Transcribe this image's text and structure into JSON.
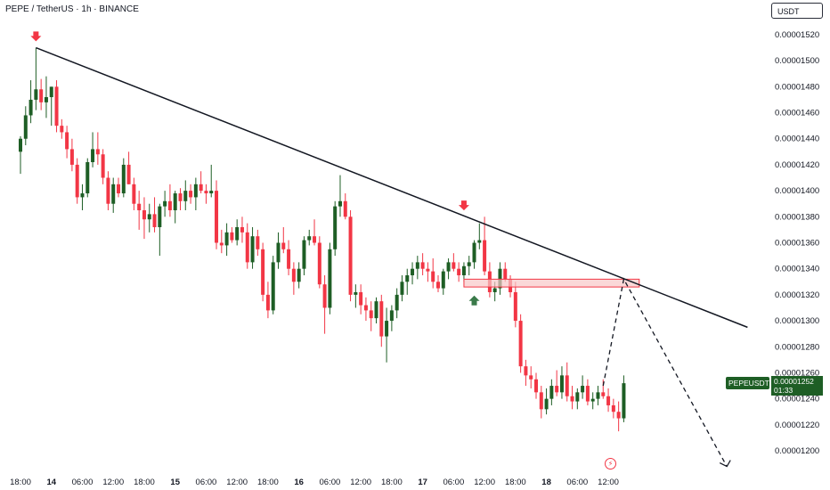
{
  "header": {
    "title": "PEPE / TetherUS · 1h · BINANCE"
  },
  "currency_badge": "USDT",
  "price_tag": {
    "symbol": "PEPEUSDT",
    "price": "0.00001252",
    "countdown": "01:33"
  },
  "icons": {
    "lightning": "lightning-icon"
  },
  "colors": {
    "up": "#1e5e25",
    "down": "#f23645",
    "trendline": "#131722",
    "zone_fill": "#f8c8c8",
    "zone_border": "#f23645",
    "projection": "#131722"
  },
  "chart_data": {
    "type": "candlestick",
    "ylim": [
      1.187e-05,
      1.533e-05
    ],
    "y_ticks": [
      "0.00001200",
      "0.00001220",
      "0.00001240",
      "0.00001260",
      "0.00001280",
      "0.00001300",
      "0.00001320",
      "0.00001340",
      "0.00001360",
      "0.00001380",
      "0.00001400",
      "0.00001420",
      "0.00001440",
      "0.00001460",
      "0.00001480",
      "0.00001500",
      "0.00001520"
    ],
    "x_ticks": [
      {
        "label": "18:00",
        "bold": false,
        "index": 0
      },
      {
        "label": "14",
        "bold": true,
        "index": 6
      },
      {
        "label": "06:00",
        "bold": false,
        "index": 12
      },
      {
        "label": "12:00",
        "bold": false,
        "index": 18
      },
      {
        "label": "18:00",
        "bold": false,
        "index": 24
      },
      {
        "label": "15",
        "bold": true,
        "index": 30
      },
      {
        "label": "06:00",
        "bold": false,
        "index": 36
      },
      {
        "label": "12:00",
        "bold": false,
        "index": 42
      },
      {
        "label": "18:00",
        "bold": false,
        "index": 48
      },
      {
        "label": "16",
        "bold": true,
        "index": 54
      },
      {
        "label": "06:00",
        "bold": false,
        "index": 60
      },
      {
        "label": "12:00",
        "bold": false,
        "index": 66
      },
      {
        "label": "18:00",
        "bold": false,
        "index": 72
      },
      {
        "label": "17",
        "bold": true,
        "index": 78
      },
      {
        "label": "06:00",
        "bold": false,
        "index": 84
      },
      {
        "label": "12:00",
        "bold": false,
        "index": 90
      },
      {
        "label": "18:00",
        "bold": false,
        "index": 96
      },
      {
        "label": "18",
        "bold": true,
        "index": 102
      },
      {
        "label": "06:00",
        "bold": false,
        "index": 108
      },
      {
        "label": "12:00",
        "bold": false,
        "index": 114
      }
    ],
    "candles": [
      {
        "o": 1.43e-05,
        "h": 1.442e-05,
        "l": 1.413e-05,
        "c": 1.44e-05
      },
      {
        "o": 1.44e-05,
        "h": 1.465e-05,
        "l": 1.435e-05,
        "c": 1.458e-05
      },
      {
        "o": 1.458e-05,
        "h": 1.485e-05,
        "l": 1.452e-05,
        "c": 1.47e-05
      },
      {
        "o": 1.47e-05,
        "h": 1.51e-05,
        "l": 1.462e-05,
        "c": 1.478e-05
      },
      {
        "o": 1.478e-05,
        "h": 1.486e-05,
        "l": 1.462e-05,
        "c": 1.468e-05
      },
      {
        "o": 1.468e-05,
        "h": 1.488e-05,
        "l": 1.456e-05,
        "c": 1.472e-05
      },
      {
        "o": 1.472e-05,
        "h": 1.48e-05,
        "l": 1.45e-05,
        "c": 1.48e-05
      },
      {
        "o": 1.48e-05,
        "h": 1.485e-05,
        "l": 1.445e-05,
        "c": 1.45e-05
      },
      {
        "o": 1.45e-05,
        "h": 1.455e-05,
        "l": 1.44e-05,
        "c": 1.445e-05
      },
      {
        "o": 1.445e-05,
        "h": 1.45e-05,
        "l": 1.425e-05,
        "c": 1.432e-05
      },
      {
        "o": 1.432e-05,
        "h": 1.44e-05,
        "l": 1.415e-05,
        "c": 1.42e-05
      },
      {
        "o": 1.42e-05,
        "h": 1.425e-05,
        "l": 1.39e-05,
        "c": 1.395e-05
      },
      {
        "o": 1.395e-05,
        "h": 1.405e-05,
        "l": 1.385e-05,
        "c": 1.398e-05
      },
      {
        "o": 1.398e-05,
        "h": 1.425e-05,
        "l": 1.395e-05,
        "c": 1.422e-05
      },
      {
        "o": 1.422e-05,
        "h": 1.445e-05,
        "l": 1.418e-05,
        "c": 1.432e-05
      },
      {
        "o": 1.432e-05,
        "h": 1.445e-05,
        "l": 1.42e-05,
        "c": 1.428e-05
      },
      {
        "o": 1.428e-05,
        "h": 1.432e-05,
        "l": 1.405e-05,
        "c": 1.41e-05
      },
      {
        "o": 1.41e-05,
        "h": 1.415e-05,
        "l": 1.385e-05,
        "c": 1.39e-05
      },
      {
        "o": 1.39e-05,
        "h": 1.41e-05,
        "l": 1.383e-05,
        "c": 1.405e-05
      },
      {
        "o": 1.405e-05,
        "h": 1.41e-05,
        "l": 1.395e-05,
        "c": 1.398e-05
      },
      {
        "o": 1.398e-05,
        "h": 1.425e-05,
        "l": 1.395e-05,
        "c": 1.42e-05
      },
      {
        "o": 1.42e-05,
        "h": 1.43e-05,
        "l": 1.405e-05,
        "c": 1.405e-05
      },
      {
        "o": 1.405e-05,
        "h": 1.41e-05,
        "l": 1.385e-05,
        "c": 1.39e-05
      },
      {
        "o": 1.39e-05,
        "h": 1.4e-05,
        "l": 1.37e-05,
        "c": 1.385e-05
      },
      {
        "o": 1.385e-05,
        "h": 1.395e-05,
        "l": 1.363e-05,
        "c": 1.378e-05
      },
      {
        "o": 1.378e-05,
        "h": 1.39e-05,
        "l": 1.368e-05,
        "c": 1.382e-05
      },
      {
        "o": 1.382e-05,
        "h": 1.395e-05,
        "l": 1.368e-05,
        "c": 1.372e-05
      },
      {
        "o": 1.372e-05,
        "h": 1.39e-05,
        "l": 1.35e-05,
        "c": 1.388e-05
      },
      {
        "o": 1.388e-05,
        "h": 1.4e-05,
        "l": 1.38e-05,
        "c": 1.392e-05
      },
      {
        "o": 1.392e-05,
        "h": 1.405e-05,
        "l": 1.38e-05,
        "c": 1.385e-05
      },
      {
        "o": 1.385e-05,
        "h": 1.4e-05,
        "l": 1.375e-05,
        "c": 1.398e-05
      },
      {
        "o": 1.398e-05,
        "h": 1.402e-05,
        "l": 1.385e-05,
        "c": 1.392e-05
      },
      {
        "o": 1.392e-05,
        "h": 1.408e-05,
        "l": 1.385e-05,
        "c": 1.4e-05
      },
      {
        "o": 1.4e-05,
        "h": 1.405e-05,
        "l": 1.39e-05,
        "c": 1.395e-05
      },
      {
        "o": 1.395e-05,
        "h": 1.41e-05,
        "l": 1.385e-05,
        "c": 1.405e-05
      },
      {
        "o": 1.405e-05,
        "h": 1.415e-05,
        "l": 1.398e-05,
        "c": 1.4e-05
      },
      {
        "o": 1.4e-05,
        "h": 1.405e-05,
        "l": 1.39e-05,
        "c": 1.398e-05
      },
      {
        "o": 1.398e-05,
        "h": 1.42e-05,
        "l": 1.395e-05,
        "c": 1.4e-05
      },
      {
        "o": 1.4e-05,
        "h": 1.408e-05,
        "l": 1.355e-05,
        "c": 1.36e-05
      },
      {
        "o": 1.36e-05,
        "h": 1.37e-05,
        "l": 1.352e-05,
        "c": 1.358e-05
      },
      {
        "o": 1.358e-05,
        "h": 1.375e-05,
        "l": 1.35e-05,
        "c": 1.368e-05
      },
      {
        "o": 1.368e-05,
        "h": 1.372e-05,
        "l": 1.36e-05,
        "c": 1.362e-05
      },
      {
        "o": 1.362e-05,
        "h": 1.378e-05,
        "l": 1.358e-05,
        "c": 1.372e-05
      },
      {
        "o": 1.372e-05,
        "h": 1.38e-05,
        "l": 1.36e-05,
        "c": 1.368e-05
      },
      {
        "o": 1.368e-05,
        "h": 1.375e-05,
        "l": 1.34e-05,
        "c": 1.345e-05
      },
      {
        "o": 1.345e-05,
        "h": 1.372e-05,
        "l": 1.34e-05,
        "c": 1.365e-05
      },
      {
        "o": 1.365e-05,
        "h": 1.37e-05,
        "l": 1.35e-05,
        "c": 1.355e-05
      },
      {
        "o": 1.355e-05,
        "h": 1.36e-05,
        "l": 1.315e-05,
        "c": 1.32e-05
      },
      {
        "o": 1.32e-05,
        "h": 1.33e-05,
        "l": 1.302e-05,
        "c": 1.308e-05
      },
      {
        "o": 1.308e-05,
        "h": 1.35e-05,
        "l": 1.305e-05,
        "c": 1.345e-05
      },
      {
        "o": 1.345e-05,
        "h": 1.368e-05,
        "l": 1.34e-05,
        "c": 1.36e-05
      },
      {
        "o": 1.36e-05,
        "h": 1.372e-05,
        "l": 1.352e-05,
        "c": 1.355e-05
      },
      {
        "o": 1.355e-05,
        "h": 1.362e-05,
        "l": 1.335e-05,
        "c": 1.34e-05
      },
      {
        "o": 1.34e-05,
        "h": 1.345e-05,
        "l": 1.32e-05,
        "c": 1.33e-05
      },
      {
        "o": 1.33e-05,
        "h": 1.345e-05,
        "l": 1.325e-05,
        "c": 1.34e-05
      },
      {
        "o": 1.34e-05,
        "h": 1.365e-05,
        "l": 1.335e-05,
        "c": 1.362e-05
      },
      {
        "o": 1.362e-05,
        "h": 1.37e-05,
        "l": 1.358e-05,
        "c": 1.365e-05
      },
      {
        "o": 1.365e-05,
        "h": 1.378e-05,
        "l": 1.358e-05,
        "c": 1.36e-05
      },
      {
        "o": 1.36e-05,
        "h": 1.365e-05,
        "l": 1.325e-05,
        "c": 1.328e-05
      },
      {
        "o": 1.328e-05,
        "h": 1.335e-05,
        "l": 1.29e-05,
        "c": 1.31e-05
      },
      {
        "o": 1.31e-05,
        "h": 1.36e-05,
        "l": 1.305e-05,
        "c": 1.355e-05
      },
      {
        "o": 1.355e-05,
        "h": 1.392e-05,
        "l": 1.35e-05,
        "c": 1.388e-05
      },
      {
        "o": 1.388e-05,
        "h": 1.412e-05,
        "l": 1.38e-05,
        "c": 1.392e-05
      },
      {
        "o": 1.392e-05,
        "h": 1.398e-05,
        "l": 1.378e-05,
        "c": 1.38e-05
      },
      {
        "o": 1.38e-05,
        "h": 1.385e-05,
        "l": 1.315e-05,
        "c": 1.32e-05
      },
      {
        "o": 1.32e-05,
        "h": 1.328e-05,
        "l": 1.31e-05,
        "c": 1.322e-05
      },
      {
        "o": 1.322e-05,
        "h": 1.328e-05,
        "l": 1.305e-05,
        "c": 1.312e-05
      },
      {
        "o": 1.312e-05,
        "h": 1.318e-05,
        "l": 1.3e-05,
        "c": 1.308e-05
      },
      {
        "o": 1.308e-05,
        "h": 1.315e-05,
        "l": 1.292e-05,
        "c": 1.302e-05
      },
      {
        "o": 1.302e-05,
        "h": 1.318e-05,
        "l": 1.298e-05,
        "c": 1.315e-05
      },
      {
        "o": 1.315e-05,
        "h": 1.32e-05,
        "l": 1.28e-05,
        "c": 1.288e-05
      },
      {
        "o": 1.288e-05,
        "h": 1.31e-05,
        "l": 1.268e-05,
        "c": 1.3e-05
      },
      {
        "o": 1.3e-05,
        "h": 1.312e-05,
        "l": 1.292e-05,
        "c": 1.308e-05
      },
      {
        "o": 1.308e-05,
        "h": 1.325e-05,
        "l": 1.302e-05,
        "c": 1.32e-05
      },
      {
        "o": 1.32e-05,
        "h": 1.335e-05,
        "l": 1.315e-05,
        "c": 1.33e-05
      },
      {
        "o": 1.33e-05,
        "h": 1.34e-05,
        "l": 1.32e-05,
        "c": 1.335e-05
      },
      {
        "o": 1.335e-05,
        "h": 1.345e-05,
        "l": 1.328e-05,
        "c": 1.34e-05
      },
      {
        "o": 1.34e-05,
        "h": 1.35e-05,
        "l": 1.332e-05,
        "c": 1.345e-05
      },
      {
        "o": 1.345e-05,
        "h": 1.352e-05,
        "l": 1.335e-05,
        "c": 1.34e-05
      },
      {
        "o": 1.34e-05,
        "h": 1.345e-05,
        "l": 1.33e-05,
        "c": 1.338e-05
      },
      {
        "o": 1.338e-05,
        "h": 1.348e-05,
        "l": 1.325e-05,
        "c": 1.33e-05
      },
      {
        "o": 1.33e-05,
        "h": 1.335e-05,
        "l": 1.322e-05,
        "c": 1.325e-05
      },
      {
        "o": 1.325e-05,
        "h": 1.34e-05,
        "l": 1.32e-05,
        "c": 1.338e-05
      },
      {
        "o": 1.338e-05,
        "h": 1.348e-05,
        "l": 1.332e-05,
        "c": 1.345e-05
      },
      {
        "o": 1.345e-05,
        "h": 1.352e-05,
        "l": 1.338e-05,
        "c": 1.34e-05
      },
      {
        "o": 1.34e-05,
        "h": 1.345e-05,
        "l": 1.33e-05,
        "c": 1.335e-05
      },
      {
        "o": 1.335e-05,
        "h": 1.345e-05,
        "l": 1.33e-05,
        "c": 1.342e-05
      },
      {
        "o": 1.342e-05,
        "h": 1.35e-05,
        "l": 1.335e-05,
        "c": 1.345e-05
      },
      {
        "o": 1.345e-05,
        "h": 1.362e-05,
        "l": 1.34e-05,
        "c": 1.36e-05
      },
      {
        "o": 1.36e-05,
        "h": 1.375e-05,
        "l": 1.355e-05,
        "c": 1.362e-05
      },
      {
        "o": 1.362e-05,
        "h": 1.38e-05,
        "l": 1.335e-05,
        "c": 1.338e-05
      },
      {
        "o": 1.338e-05,
        "h": 1.345e-05,
        "l": 1.318e-05,
        "c": 1.322e-05
      },
      {
        "o": 1.322e-05,
        "h": 1.33e-05,
        "l": 1.315e-05,
        "c": 1.325e-05
      },
      {
        "o": 1.325e-05,
        "h": 1.345e-05,
        "l": 1.32e-05,
        "c": 1.34e-05
      },
      {
        "o": 1.34e-05,
        "h": 1.345e-05,
        "l": 1.33e-05,
        "c": 1.332e-05
      },
      {
        "o": 1.332e-05,
        "h": 1.335e-05,
        "l": 1.318e-05,
        "c": 1.322e-05
      },
      {
        "o": 1.322e-05,
        "h": 1.33e-05,
        "l": 1.295e-05,
        "c": 1.3e-05
      },
      {
        "o": 1.3e-05,
        "h": 1.305e-05,
        "l": 1.26e-05,
        "c": 1.265e-05
      },
      {
        "o": 1.265e-05,
        "h": 1.27e-05,
        "l": 1.25e-05,
        "c": 1.258e-05
      },
      {
        "o": 1.258e-05,
        "h": 1.265e-05,
        "l": 1.248e-05,
        "c": 1.255e-05
      },
      {
        "o": 1.255e-05,
        "h": 1.26e-05,
        "l": 1.24e-05,
        "c": 1.245e-05
      },
      {
        "o": 1.245e-05,
        "h": 1.25e-05,
        "l": 1.225e-05,
        "c": 1.232e-05
      },
      {
        "o": 1.232e-05,
        "h": 1.248e-05,
        "l": 1.228e-05,
        "c": 1.24e-05
      },
      {
        "o": 1.24e-05,
        "h": 1.255e-05,
        "l": 1.235e-05,
        "c": 1.25e-05
      },
      {
        "o": 1.25e-05,
        "h": 1.262e-05,
        "l": 1.242e-05,
        "c": 1.245e-05
      },
      {
        "o": 1.245e-05,
        "h": 1.265e-05,
        "l": 1.24e-05,
        "c": 1.258e-05
      },
      {
        "o": 1.258e-05,
        "h": 1.268e-05,
        "l": 1.238e-05,
        "c": 1.242e-05
      },
      {
        "o": 1.242e-05,
        "h": 1.25e-05,
        "l": 1.232e-05,
        "c": 1.238e-05
      },
      {
        "o": 1.238e-05,
        "h": 1.248e-05,
        "l": 1.232e-05,
        "c": 1.245e-05
      },
      {
        "o": 1.245e-05,
        "h": 1.258e-05,
        "l": 1.24e-05,
        "c": 1.25e-05
      },
      {
        "o": 1.25e-05,
        "h": 1.255e-05,
        "l": 1.235e-05,
        "c": 1.238e-05
      },
      {
        "o": 1.238e-05,
        "h": 1.245e-05,
        "l": 1.232e-05,
        "c": 1.24e-05
      },
      {
        "o": 1.24e-05,
        "h": 1.25e-05,
        "l": 1.235e-05,
        "c": 1.245e-05
      },
      {
        "o": 1.245e-05,
        "h": 1.255e-05,
        "l": 1.24e-05,
        "c": 1.242e-05
      },
      {
        "o": 1.242e-05,
        "h": 1.248e-05,
        "l": 1.23e-05,
        "c": 1.235e-05
      },
      {
        "o": 1.235e-05,
        "h": 1.24e-05,
        "l": 1.225e-05,
        "c": 1.23e-05
      },
      {
        "o": 1.23e-05,
        "h": 1.238e-05,
        "l": 1.215e-05,
        "c": 1.225e-05
      },
      {
        "o": 1.225e-05,
        "h": 1.258e-05,
        "l": 1.222e-05,
        "c": 1.252e-05
      }
    ],
    "drawings": {
      "trendline": {
        "start_index": 3,
        "start_price": 1.51e-05,
        "end_index": 141,
        "end_price": 1.295e-05
      },
      "zone": {
        "start_index": 86,
        "end_index": 120,
        "top": 1.332e-05,
        "bottom": 1.326e-05
      },
      "projection": [
        {
          "index": 113,
          "price": 1.25e-05
        },
        {
          "index": 117,
          "price": 1.332e-05
        },
        {
          "index": 137,
          "price": 1.188e-05
        }
      ],
      "markers": [
        {
          "type": "down",
          "index": 3,
          "price": 1.517e-05
        },
        {
          "type": "down",
          "index": 86,
          "price": 1.387e-05
        },
        {
          "type": "up",
          "index": 88,
          "price": 1.318e-05
        }
      ]
    }
  }
}
